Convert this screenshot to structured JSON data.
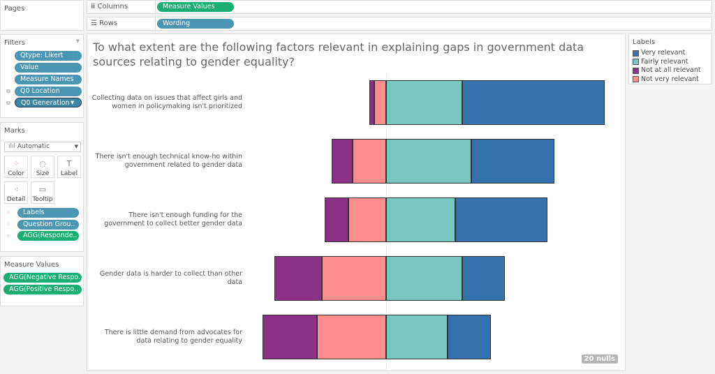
{
  "shelves": {
    "columns_label": "Columns",
    "columns_pill": "Measure Values",
    "rows_label": "Rows",
    "rows_pill": "Wording"
  },
  "pages": {
    "title": "Pages"
  },
  "filters": {
    "title": "Filters",
    "items": [
      "Qtype: Likert",
      "Value",
      "Measure Names",
      "Q0 Location",
      "Q0 Generation"
    ]
  },
  "marks": {
    "title": "Marks",
    "type": "Automatic",
    "buttons": [
      "Color",
      "Size",
      "Label",
      "Detail",
      "Tooltip"
    ],
    "pills": [
      "Labels",
      "Question Grou..",
      "AGG(Responde.."
    ]
  },
  "measure_values": {
    "title": "Measure Values",
    "items": [
      "AGG(Negative Respo..",
      "AGG(Positive Respo.."
    ]
  },
  "legend": {
    "title": "Labels",
    "items": [
      {
        "label": "Very relevant",
        "color": "#3571ad"
      },
      {
        "label": "Fairly relevant",
        "color": "#78c6bf"
      },
      {
        "label": "Not at all relevant",
        "color": "#8b3186"
      },
      {
        "label": "Not very relevant",
        "color": "#ff8c8c"
      }
    ]
  },
  "nulls": "20 nulls",
  "chart_data": {
    "type": "bar",
    "orientation": "horizontal diverging stacked",
    "title": "To what extent are the following factors relevant in explaining gaps in government data sources relating to gender equality?",
    "categories": [
      "Collecting data on issues that affect girls and women in policymaking isn't prioritized",
      "There isn't enough technical know-ho within government related to gender data",
      "There isn't enough funding for the government to collect better gender data",
      "Gender data is harder to collect than other data",
      "There is little demand from advocates for data relating to gender equality"
    ],
    "series": [
      {
        "name": "Not at all relevant",
        "side": "negative",
        "color": "#8b3186",
        "values": [
          2,
          9,
          10,
          20,
          23
        ]
      },
      {
        "name": "Not very relevant",
        "side": "negative",
        "color": "#ff8c8c",
        "values": [
          5,
          14,
          16,
          27,
          29
        ]
      },
      {
        "name": "Fairly relevant",
        "side": "positive",
        "color": "#78c6bf",
        "values": [
          32,
          36,
          29,
          32,
          26
        ]
      },
      {
        "name": "Very relevant",
        "side": "positive",
        "color": "#3571ad",
        "values": [
          60,
          35,
          39,
          18,
          18
        ]
      }
    ],
    "legend": "right",
    "grid": false
  }
}
